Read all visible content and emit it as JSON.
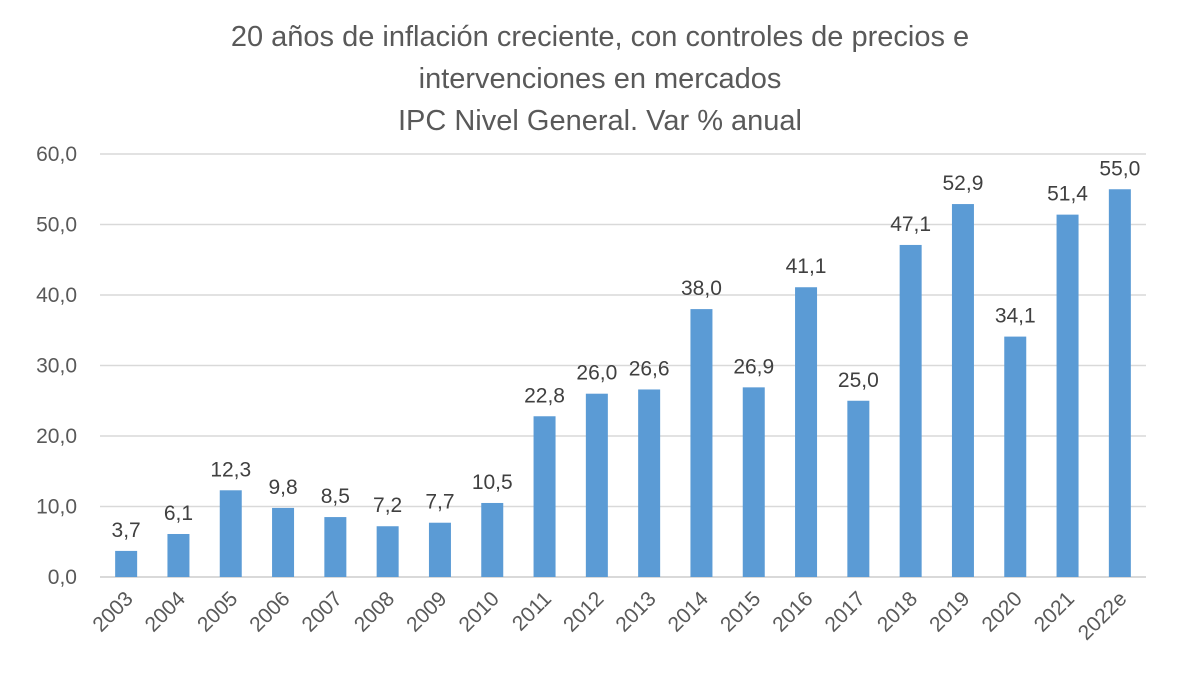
{
  "chart_data": {
    "type": "bar",
    "title": [
      "20 años de inflación creciente, con controles de precios e",
      "intervenciones en mercados",
      "IPC Nivel General. Var % anual"
    ],
    "xlabel": "",
    "ylabel": "",
    "ylim": [
      0,
      60
    ],
    "yticks": [
      "0,0",
      "10,0",
      "20,0",
      "30,0",
      "40,0",
      "50,0",
      "60,0"
    ],
    "grid": true,
    "legend": "none",
    "bar_color": "#5B9BD5",
    "categories": [
      "2003",
      "2004",
      "2005",
      "2006",
      "2007",
      "2008",
      "2009",
      "2010",
      "2011",
      "2012",
      "2013",
      "2014",
      "2015",
      "2016",
      "2017",
      "2018",
      "2019",
      "2020",
      "2021",
      "2022e"
    ],
    "values": [
      3.7,
      6.1,
      12.3,
      9.8,
      8.5,
      7.2,
      7.7,
      10.5,
      22.8,
      26.0,
      26.6,
      38.0,
      26.9,
      41.1,
      25.0,
      47.1,
      52.9,
      34.1,
      51.4,
      55.0
    ],
    "data_labels": [
      "3,7",
      "6,1",
      "12,3",
      "9,8",
      "8,5",
      "7,2",
      "7,7",
      "10,5",
      "22,8",
      "26,0",
      "26,6",
      "38,0",
      "26,9",
      "41,1",
      "25,0",
      "47,1",
      "52,9",
      "34,1",
      "51,4",
      "55,0"
    ]
  }
}
